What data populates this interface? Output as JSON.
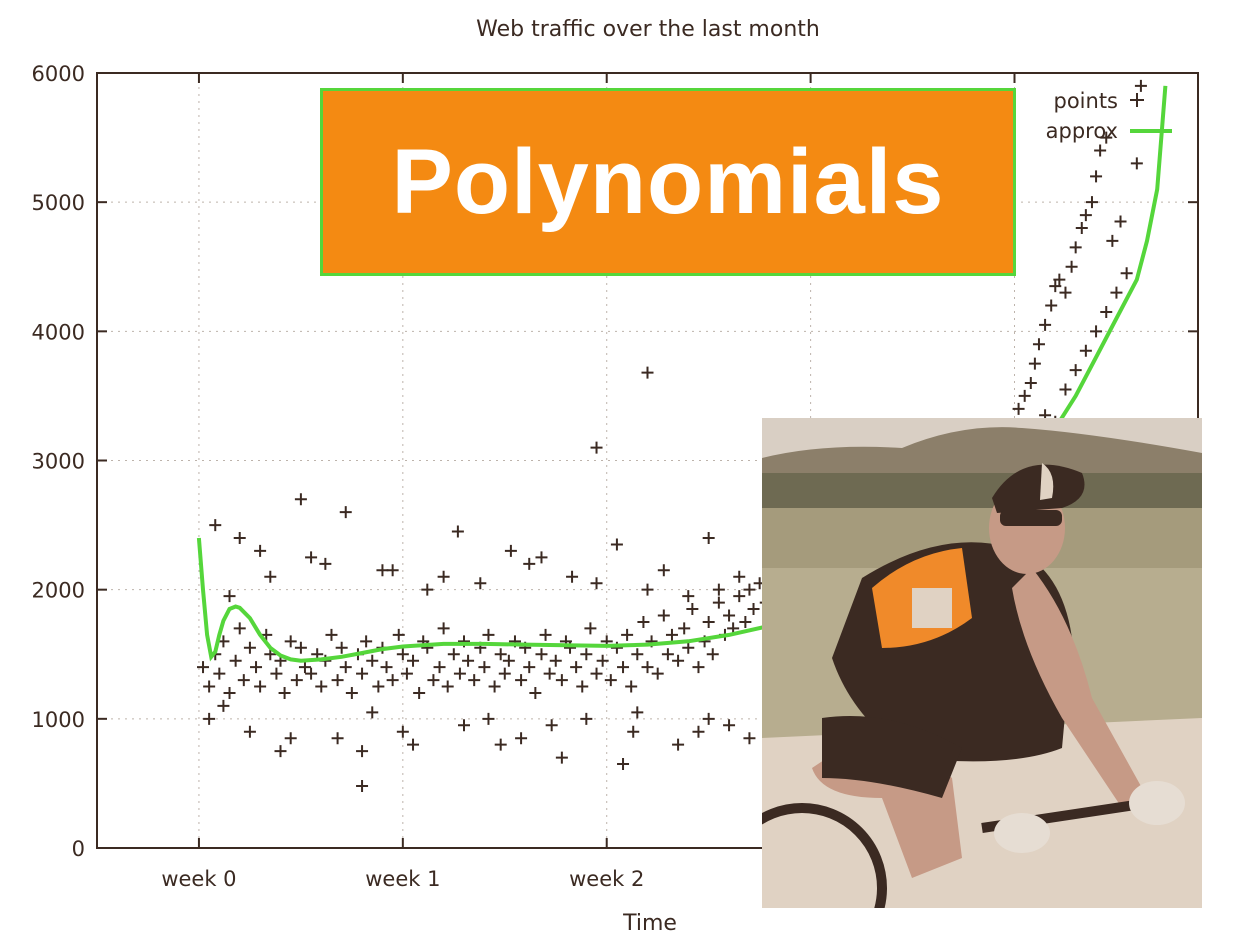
{
  "banner": {
    "text": "Polynomials"
  },
  "photo": {
    "subject": "cyclist-photo"
  },
  "chart_data": {
    "type": "scatter",
    "title": "Web traffic over the last month",
    "xlabel": "Time",
    "ylabel": "",
    "ylim": [
      0,
      6000
    ],
    "xlim_weeks": [
      -0.5,
      4.9
    ],
    "yticks": [
      0,
      1000,
      2000,
      3000,
      4000,
      5000,
      6000
    ],
    "ytick_labels": [
      "0",
      "1000",
      "2000",
      "3000",
      "4000",
      "5000",
      "6000"
    ],
    "xticks_weeks": [
      0,
      1,
      2,
      3,
      4
    ],
    "xtick_labels": [
      "week 0",
      "week 1",
      "week 2",
      "week 3",
      "week 4"
    ],
    "grid": true,
    "legend_position": "top-right",
    "series": [
      {
        "name": "points",
        "marker": "+",
        "color": "#3b2a22",
        "x": [
          0.02,
          0.05,
          0.08,
          0.1,
          0.12,
          0.15,
          0.18,
          0.2,
          0.22,
          0.25,
          0.28,
          0.3,
          0.33,
          0.35,
          0.38,
          0.4,
          0.42,
          0.45,
          0.48,
          0.5,
          0.52,
          0.55,
          0.58,
          0.6,
          0.62,
          0.65,
          0.68,
          0.7,
          0.72,
          0.75,
          0.78,
          0.8,
          0.82,
          0.85,
          0.88,
          0.9,
          0.92,
          0.95,
          0.98,
          1.0,
          1.02,
          1.05,
          1.08,
          1.1,
          1.12,
          1.15,
          1.18,
          1.2,
          1.22,
          1.25,
          1.28,
          1.3,
          1.32,
          1.35,
          1.38,
          1.4,
          1.42,
          1.45,
          1.48,
          1.5,
          1.52,
          1.55,
          1.58,
          1.6,
          1.62,
          1.65,
          1.68,
          1.7,
          1.72,
          1.75,
          1.78,
          1.8,
          1.82,
          1.85,
          1.88,
          1.9,
          1.92,
          1.95,
          1.98,
          2.0,
          2.02,
          2.05,
          2.08,
          2.1,
          2.12,
          2.15,
          2.18,
          2.2,
          2.22,
          2.25,
          2.28,
          2.3,
          2.32,
          2.35,
          2.38,
          2.4,
          2.42,
          2.45,
          2.48,
          2.5,
          2.52,
          2.55,
          2.58,
          2.6,
          2.62,
          2.65,
          2.68,
          2.7,
          2.72,
          2.75,
          2.78,
          0.08,
          0.2,
          0.5,
          0.72,
          1.27,
          1.53,
          2.05,
          2.5,
          0.15,
          0.35,
          0.62,
          0.9,
          1.12,
          1.38,
          1.68,
          1.83,
          2.2,
          2.4,
          2.65,
          0.25,
          0.45,
          0.8,
          1.05,
          1.3,
          1.58,
          1.9,
          2.13,
          2.35,
          2.6,
          0.05,
          0.4,
          0.68,
          1.0,
          1.48,
          1.78,
          2.08,
          2.45,
          2.7,
          0.3,
          0.55,
          0.95,
          1.2,
          1.62,
          1.95,
          2.28,
          2.55,
          0.12,
          0.85,
          1.42,
          1.73,
          2.15,
          2.5,
          3.95,
          3.98,
          4.0,
          4.02,
          4.05,
          4.08,
          4.1,
          4.12,
          4.15,
          4.18,
          4.2,
          4.22,
          4.25,
          4.28,
          4.3,
          4.33,
          4.35,
          4.38,
          4.4,
          4.42,
          4.45,
          4.0,
          4.05,
          4.1,
          4.15,
          4.2,
          4.25,
          4.3,
          4.35,
          4.4,
          4.45,
          4.5,
          4.55,
          4.48,
          4.52,
          4.6,
          4.62
        ],
        "y": [
          1400,
          1250,
          1500,
          1350,
          1600,
          1200,
          1450,
          1700,
          1300,
          1550,
          1400,
          1250,
          1650,
          1500,
          1350,
          1450,
          1200,
          1600,
          1300,
          1550,
          1400,
          1350,
          1500,
          1250,
          1450,
          1650,
          1300,
          1550,
          1400,
          1200,
          1500,
          1350,
          1600,
          1450,
          1250,
          1550,
          1400,
          1300,
          1650,
          1500,
          1350,
          1450,
          1200,
          1600,
          1550,
          1300,
          1400,
          1700,
          1250,
          1500,
          1350,
          1600,
          1450,
          1300,
          1550,
          1400,
          1650,
          1250,
          1500,
          1350,
          1450,
          1600,
          1300,
          1550,
          1400,
          1200,
          1500,
          1650,
          1350,
          1450,
          1300,
          1600,
          1550,
          1400,
          1250,
          1500,
          1700,
          1350,
          1450,
          1600,
          1300,
          1550,
          1400,
          1650,
          1250,
          1500,
          1750,
          1400,
          1600,
          1350,
          1800,
          1500,
          1650,
          1450,
          1700,
          1550,
          1850,
          1400,
          1600,
          1750,
          1500,
          1900,
          1650,
          1800,
          1700,
          1950,
          1750,
          2000,
          1850,
          2050,
          1900,
          2500,
          2400,
          2700,
          2600,
          2450,
          2300,
          2350,
          2400,
          1950,
          2100,
          2200,
          2150,
          2000,
          2050,
          2250,
          2100,
          2000,
          1950,
          2100,
          900,
          850,
          750,
          800,
          950,
          850,
          1000,
          900,
          800,
          950,
          1000,
          750,
          850,
          900,
          800,
          700,
          650,
          900,
          850,
          2300,
          2250,
          2150,
          2100,
          2200,
          2050,
          2150,
          2000,
          1100,
          1050,
          1000,
          950,
          1050,
          1000,
          3000,
          3100,
          3250,
          3400,
          3500,
          3600,
          3750,
          3900,
          4050,
          4200,
          4350,
          4400,
          4300,
          4500,
          4650,
          4800,
          4900,
          5000,
          5200,
          5400,
          5500,
          2900,
          3000,
          3200,
          3350,
          3300,
          3550,
          3700,
          3850,
          4000,
          4150,
          4300,
          4450,
          4700,
          4850,
          5300,
          5900
        ],
        "outliers": [
          [
            0.8,
            480
          ],
          [
            1.95,
            3100
          ],
          [
            2.2,
            3680
          ]
        ]
      },
      {
        "name": "approx",
        "color": "#55d63b",
        "line_width": 4,
        "x": [
          0.0,
          0.02,
          0.04,
          0.06,
          0.08,
          0.1,
          0.12,
          0.15,
          0.18,
          0.2,
          0.25,
          0.3,
          0.35,
          0.4,
          0.45,
          0.5,
          0.6,
          0.7,
          0.8,
          0.9,
          1.0,
          1.2,
          1.4,
          1.6,
          1.8,
          2.0,
          2.2,
          2.4,
          2.6,
          2.8,
          3.0,
          3.2,
          3.4,
          3.6,
          3.8,
          4.0,
          4.1,
          4.2,
          4.3,
          4.4,
          4.5,
          4.6,
          4.65,
          4.7,
          4.72,
          4.74
        ],
        "y": [
          2400,
          2000,
          1650,
          1480,
          1520,
          1650,
          1760,
          1850,
          1870,
          1860,
          1780,
          1650,
          1550,
          1490,
          1460,
          1450,
          1460,
          1480,
          1510,
          1540,
          1560,
          1580,
          1580,
          1575,
          1570,
          1565,
          1575,
          1600,
          1650,
          1720,
          1800,
          1900,
          2030,
          2200,
          2450,
          2800,
          3000,
          3250,
          3500,
          3800,
          4100,
          4400,
          4700,
          5100,
          5500,
          5900
        ]
      }
    ]
  }
}
